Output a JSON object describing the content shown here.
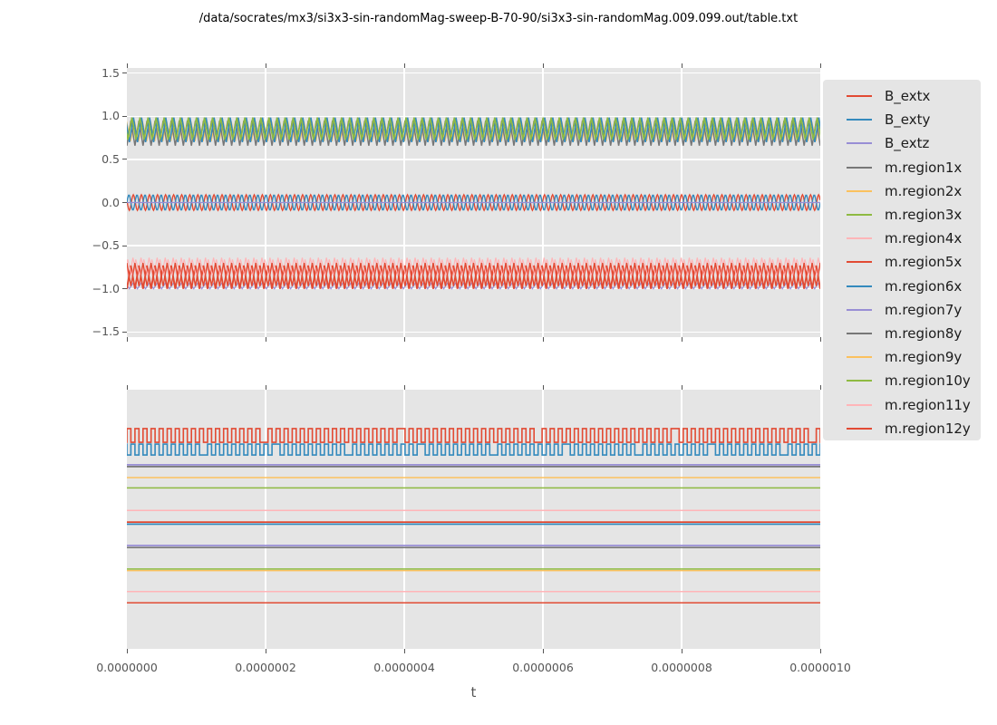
{
  "title": "/data/socrates/mx3/si3x3-sin-randomMag-sweep-B-70-90/si3x3-sin-randomMag.009.099.out/table.txt",
  "colors": {
    "figure_bg": "#ffffff",
    "panel_bg": "#e5e5e5",
    "grid": "#ffffff",
    "tick_label": "#555555",
    "title_text": "#000000",
    "legend_text": "#1c1c1c",
    "cycle": [
      "#E24A33",
      "#348ABD",
      "#988ED5",
      "#777777",
      "#FBC15E",
      "#8EBA42",
      "#FFB5B8"
    ]
  },
  "legend": {
    "items": [
      {
        "label": "B_extx",
        "color": "#E24A33"
      },
      {
        "label": "B_exty",
        "color": "#348ABD"
      },
      {
        "label": "B_extz",
        "color": "#988ED5"
      },
      {
        "label": "m.region1x",
        "color": "#777777"
      },
      {
        "label": "m.region2x",
        "color": "#FBC15E"
      },
      {
        "label": "m.region3x",
        "color": "#8EBA42"
      },
      {
        "label": "m.region4x",
        "color": "#FFB5B8"
      },
      {
        "label": "m.region5x",
        "color": "#E24A33"
      },
      {
        "label": "m.region6x",
        "color": "#348ABD"
      },
      {
        "label": "m.region7y",
        "color": "#988ED5"
      },
      {
        "label": "m.region8y",
        "color": "#777777"
      },
      {
        "label": "m.region9y",
        "color": "#FBC15E"
      },
      {
        "label": "m.region10y",
        "color": "#8EBA42"
      },
      {
        "label": "m.region11y",
        "color": "#FFB5B8"
      },
      {
        "label": "m.region12y",
        "color": "#E24A33"
      }
    ]
  },
  "chart_data": [
    {
      "id": "top-subplot",
      "type": "line",
      "xlabel": "t",
      "x_range": [
        0.0,
        1e-06
      ],
      "x_tick_labels": [
        "0.0000000",
        "0.0000002",
        "0.0000004",
        "0.0000006",
        "0.0000008",
        "0.0000010"
      ],
      "ylim": [
        -1.56,
        1.56
      ],
      "y_ticks": [
        1.5,
        1.0,
        0.5,
        0.0,
        -0.5,
        -1.0,
        -1.5
      ],
      "y_tick_labels": [
        "1.5",
        "1.0",
        "0.5",
        "0.0",
        "−0.5",
        "−1.0",
        "−1.5"
      ],
      "grid": true,
      "note": "all series oscillate with ~86 cycles over the 1e-6 s window (period ~1.16e-8 s)",
      "series": [
        {
          "name": "m.region2x",
          "color": "#FBC15E",
          "type": "zigzag",
          "peak": 0.94,
          "trough": 0.71,
          "cycles": 86,
          "phase": 0.45,
          "lw": 1.2
        },
        {
          "name": "m.region1x",
          "color": "#777777",
          "type": "zigzag",
          "peak": 0.95,
          "trough": 0.66,
          "cycles": 86,
          "phase": 0.0,
          "lw": 1.5
        },
        {
          "name": "m.region6x",
          "color": "#348ABD",
          "type": "zigzag",
          "peak": 0.985,
          "trough": 0.7,
          "cycles": 86,
          "phase": 0.32,
          "lw": 1.6
        },
        {
          "name": "m.region3x",
          "color": "#8EBA42",
          "type": "zigzag",
          "peak": 0.985,
          "trough": 0.73,
          "cycles": 86,
          "phase": 0.12,
          "lw": 1.6
        },
        {
          "name": "B_extx",
          "color": "#E24A33",
          "type": "sine",
          "offset": 0.0,
          "amplitude": 0.09,
          "cycles": 86,
          "phase": 0.45,
          "lw": 1.4
        },
        {
          "name": "B_exty",
          "color": "#348ABD",
          "type": "sine",
          "offset": 0.0,
          "amplitude": 0.09,
          "cycles": 86,
          "phase": 0.0,
          "lw": 1.4
        },
        {
          "name": "B_extz",
          "color": "#988ED5",
          "type": "flat",
          "offset": 0.0,
          "lw": 1.3
        },
        {
          "name": "m.region7y",
          "color": "#988ED5",
          "type": "zigzag",
          "peak": -0.93,
          "trough": -1.0,
          "cycles": 86,
          "phase": 0.3,
          "lw": 1.2
        },
        {
          "name": "m.region4x",
          "color": "#FFB5B8",
          "type": "zigzag",
          "peak": -0.64,
          "trough": -0.88,
          "cycles": 86,
          "phase": 0.25,
          "lw": 1.2
        },
        {
          "name": "m.region5x",
          "color": "#E24A33",
          "type": "zigzag",
          "peak": -0.73,
          "trough": -1.0,
          "cycles": 86,
          "phase": 0.0,
          "lw": 1.9
        },
        {
          "name": "m.region11y",
          "color": "#FFB5B8",
          "type": "zigzag",
          "peak": -0.66,
          "trough": -0.85,
          "cycles": 86,
          "phase": 0.6,
          "lw": 1.1
        },
        {
          "name": "m.region12y",
          "color": "#E24A33",
          "type": "zigzag",
          "peak": -0.7,
          "trough": -0.97,
          "cycles": 86,
          "phase": 0.5,
          "lw": 1.4
        }
      ]
    },
    {
      "id": "bottom-subplot",
      "type": "line",
      "xlabel": "t",
      "x_range": [
        0.0,
        1e-06
      ],
      "x_tick_labels": [
        "0.0000000",
        "0.0000002",
        "0.0000004",
        "0.0000006",
        "0.0000008",
        "0.0000010"
      ],
      "y_tick_labels": [],
      "grid": true,
      "note": "no y tick labels shown; levels below given as fraction of panel height from top",
      "series": [
        {
          "name": "red-square-wave",
          "color": "#E24A33",
          "type": "square",
          "high_frac": 0.15,
          "low_frac": 0.203,
          "cycles": 86,
          "phase_hp": 0,
          "glitch": 34,
          "lw": 1.6
        },
        {
          "name": "blue-square-wave",
          "color": "#348ABD",
          "type": "square",
          "high_frac": 0.21,
          "low_frac": 0.252,
          "cycles": 86,
          "phase_hp": 1,
          "glitch": 18,
          "lw": 1.6
        },
        {
          "name": "gray-flat-line-1",
          "color": "#777777",
          "type": "flat_frac",
          "y_frac": 0.297,
          "lw": 1.7
        },
        {
          "name": "purple-flat-line-1",
          "color": "#988ED5",
          "type": "flat_frac",
          "y_frac": 0.29,
          "lw": 1.7
        },
        {
          "name": "orange-flat-line-1",
          "color": "#FBC15E",
          "type": "flat_frac",
          "y_frac": 0.339,
          "lw": 1.5
        },
        {
          "name": "green-flat-line-1",
          "color": "#8EBA42",
          "type": "flat_frac",
          "y_frac": 0.379,
          "lw": 1.5
        },
        {
          "name": "pink-flat-line-1",
          "color": "#FFB5B8",
          "type": "flat_frac",
          "y_frac": 0.466,
          "lw": 1.5
        },
        {
          "name": "blue-flat-line-1",
          "color": "#348ABD",
          "type": "flat_frac",
          "y_frac": 0.519,
          "lw": 1.7
        },
        {
          "name": "red-flat-line-1",
          "color": "#E24A33",
          "type": "flat_frac",
          "y_frac": 0.511,
          "lw": 1.7
        },
        {
          "name": "gray-flat-line-2",
          "color": "#777777",
          "type": "flat_frac",
          "y_frac": 0.609,
          "lw": 1.7
        },
        {
          "name": "purple-flat-line-2",
          "color": "#988ED5",
          "type": "flat_frac",
          "y_frac": 0.601,
          "lw": 1.7
        },
        {
          "name": "orange-flat-line-2",
          "color": "#FBC15E",
          "type": "flat_frac",
          "y_frac": 0.698,
          "lw": 1.5
        },
        {
          "name": "green-flat-line-2",
          "color": "#8EBA42",
          "type": "flat_frac",
          "y_frac": 0.692,
          "lw": 1.5
        },
        {
          "name": "pink-flat-line-2",
          "color": "#FFB5B8",
          "type": "flat_frac",
          "y_frac": 0.779,
          "lw": 1.5
        },
        {
          "name": "red-flat-line-2",
          "color": "#E24A33",
          "type": "flat_frac",
          "y_frac": 0.822,
          "lw": 1.5
        }
      ]
    }
  ]
}
